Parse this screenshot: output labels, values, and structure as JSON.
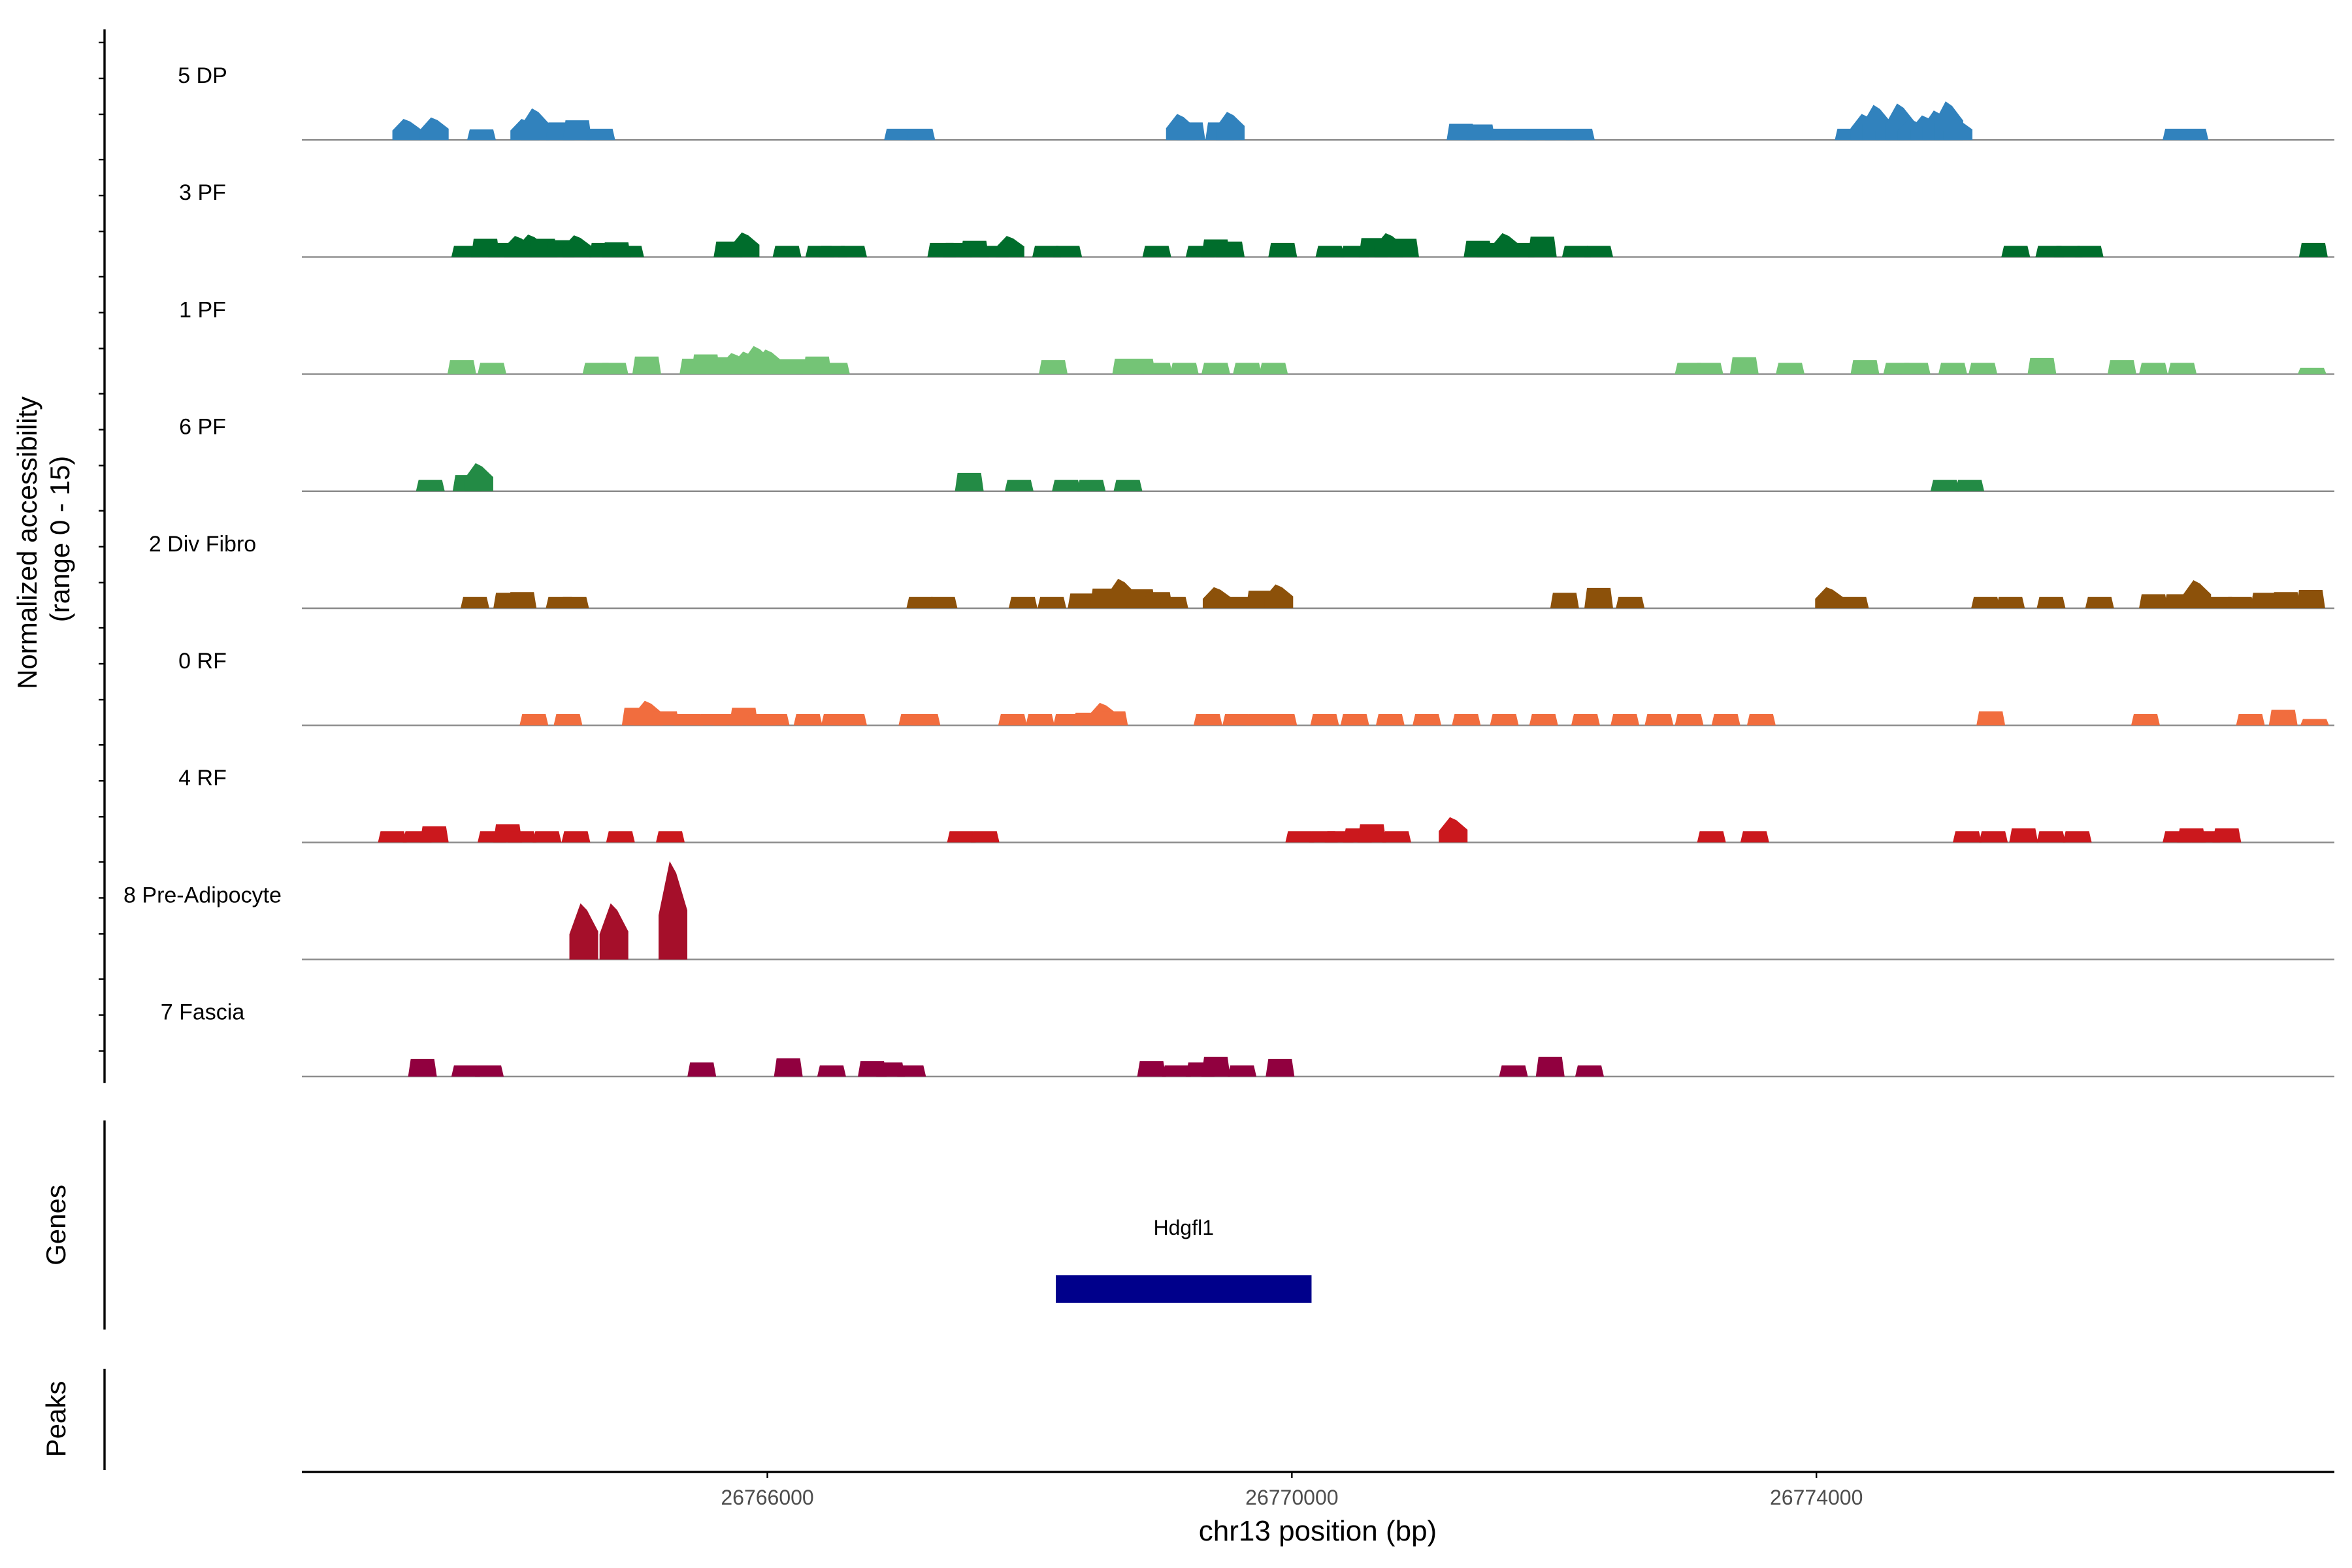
{
  "chart_data": {
    "type": "area",
    "title": "",
    "ylabel": "Normalized accessibility",
    "ylabel_range": "(range 0 - 15)",
    "xlabel": "chr13 position (bp)",
    "xlim": [
      26762450,
      26777950
    ],
    "ylim": [
      0,
      15
    ],
    "x_ticks": [
      26766000,
      26770000,
      26774000
    ],
    "x_tick_labels": [
      "26766000",
      "26770000",
      "26774000"
    ],
    "gene_panel_title": "Genes",
    "peak_panel_title": "Peaks",
    "genes": [
      {
        "name": "Hdgfl1",
        "start": 26768200,
        "end": 26770150,
        "color": "#00008b"
      }
    ],
    "peaks": [],
    "tracks": [
      {
        "name": "5 DP",
        "color": "#3182bd",
        "peaks": [
          [
            26763250,
            3
          ],
          [
            26763460,
            3.2
          ],
          [
            26763820,
            1.5
          ],
          [
            26764150,
            3
          ],
          [
            26764230,
            4.5
          ],
          [
            26764420,
            2.5
          ],
          [
            26764550,
            2.8
          ],
          [
            26764730,
            1.6
          ],
          [
            26767000,
            1.6
          ],
          [
            26767170,
            1.6
          ],
          [
            26769150,
            3.7
          ],
          [
            26769230,
            2.5
          ],
          [
            26769450,
            2.5
          ],
          [
            26769530,
            4
          ],
          [
            26771290,
            2.3
          ],
          [
            26771440,
            2.2
          ],
          [
            26771620,
            1.6
          ],
          [
            26771760,
            1.6
          ],
          [
            26771900,
            1.6
          ],
          [
            26772040,
            1.6
          ],
          [
            26772200,
            1.6
          ],
          [
            26774250,
            1.6
          ],
          [
            26774370,
            3.7
          ],
          [
            26774460,
            5
          ],
          [
            26774560,
            3
          ],
          [
            26774640,
            5.2
          ],
          [
            26774730,
            3
          ],
          [
            26774830,
            3.5
          ],
          [
            26774920,
            4.2
          ],
          [
            26775010,
            5.5
          ],
          [
            26775080,
            3
          ],
          [
            26776750,
            1.6
          ],
          [
            26776880,
            1.6
          ]
        ]
      },
      {
        "name": "3 PF",
        "color": "#006d2c",
        "peaks": [
          [
            26763700,
            1.6
          ],
          [
            26763850,
            2.6
          ],
          [
            26763980,
            2
          ],
          [
            26764100,
            3
          ],
          [
            26764200,
            3.2
          ],
          [
            26764290,
            2.6
          ],
          [
            26764420,
            2.4
          ],
          [
            26764550,
            3.1
          ],
          [
            26764750,
            2
          ],
          [
            26764850,
            2.1
          ],
          [
            26764950,
            1.6
          ],
          [
            26765700,
            2.2
          ],
          [
            26765830,
            3.5
          ],
          [
            26766150,
            1.6
          ],
          [
            26766400,
            1.6
          ],
          [
            26766500,
            1.6
          ],
          [
            26766650,
            1.6
          ],
          [
            26767330,
            2
          ],
          [
            26767450,
            2
          ],
          [
            26767580,
            2.3
          ],
          [
            26767730,
            1.6
          ],
          [
            26767850,
            3
          ],
          [
            26768130,
            1.6
          ],
          [
            26768290,
            1.6
          ],
          [
            26768970,
            1.6
          ],
          [
            26769300,
            1.6
          ],
          [
            26769420,
            2.5
          ],
          [
            26769530,
            2.2
          ],
          [
            26769930,
            2
          ],
          [
            26770290,
            1.6
          ],
          [
            26770480,
            1.6
          ],
          [
            26770620,
            2.7
          ],
          [
            26770740,
            3.4
          ],
          [
            26770860,
            2.6
          ],
          [
            26771420,
            2.3
          ],
          [
            26771520,
            2
          ],
          [
            26771630,
            3.4
          ],
          [
            26771740,
            2
          ],
          [
            26771910,
            2.9
          ],
          [
            26772170,
            1.6
          ],
          [
            26772340,
            1.6
          ],
          [
            26775520,
            1.6
          ],
          [
            26775780,
            1.6
          ],
          [
            26775920,
            1.6
          ],
          [
            26776080,
            1.6
          ],
          [
            26777790,
            2
          ]
        ]
      },
      {
        "name": "1 PF",
        "color": "#74c476",
        "peaks": [
          [
            26763670,
            2
          ],
          [
            26763900,
            1.6
          ],
          [
            26764700,
            1.6
          ],
          [
            26764830,
            1.6
          ],
          [
            26765080,
            2.5
          ],
          [
            26765440,
            2.2
          ],
          [
            26765530,
            2.8
          ],
          [
            26765640,
            2.4
          ],
          [
            26765750,
            3
          ],
          [
            26765840,
            3.2
          ],
          [
            26765920,
            4
          ],
          [
            26766010,
            3.5
          ],
          [
            26766110,
            2.1
          ],
          [
            26766230,
            2.1
          ],
          [
            26766380,
            2.5
          ],
          [
            26766520,
            1.6
          ],
          [
            26768180,
            2
          ],
          [
            26768740,
            2.2
          ],
          [
            26768850,
            2.2
          ],
          [
            26768980,
            1.6
          ],
          [
            26769180,
            1.6
          ],
          [
            26769420,
            1.6
          ],
          [
            26769660,
            1.6
          ],
          [
            26769860,
            1.6
          ],
          [
            26773030,
            1.6
          ],
          [
            26773180,
            1.6
          ],
          [
            26773450,
            2.4
          ],
          [
            26773800,
            1.6
          ],
          [
            26774370,
            2
          ],
          [
            26774620,
            1.6
          ],
          [
            26774760,
            1.6
          ],
          [
            26775040,
            1.6
          ],
          [
            26775270,
            1.6
          ],
          [
            26775720,
            2.3
          ],
          [
            26776330,
            2
          ],
          [
            26776570,
            1.6
          ],
          [
            26776790,
            1.6
          ],
          [
            26777780,
            0.9
          ]
        ]
      },
      {
        "name": "6 PF",
        "color": "#238b45",
        "peaks": [
          [
            26763430,
            1.6
          ],
          [
            26763710,
            2.3
          ],
          [
            26763800,
            4
          ],
          [
            26767540,
            2.6
          ],
          [
            26767920,
            1.6
          ],
          [
            26768280,
            1.6
          ],
          [
            26768470,
            1.6
          ],
          [
            26768750,
            1.6
          ],
          [
            26774980,
            1.6
          ],
          [
            26775170,
            1.6
          ]
        ]
      },
      {
        "name": "2 Div Fibro",
        "color": "#8c510a",
        "peaks": [
          [
            26763770,
            1.6
          ],
          [
            26764020,
            2.2
          ],
          [
            26764130,
            2.3
          ],
          [
            26764420,
            1.6
          ],
          [
            26764530,
            1.6
          ],
          [
            26767170,
            1.6
          ],
          [
            26767340,
            1.6
          ],
          [
            26767950,
            1.6
          ],
          [
            26768170,
            1.6
          ],
          [
            26768400,
            2.1
          ],
          [
            26768570,
            2.8
          ],
          [
            26768700,
            4.2
          ],
          [
            26768850,
            2.7
          ],
          [
            26768980,
            2.3
          ],
          [
            26769100,
            1.6
          ],
          [
            26769430,
            3
          ],
          [
            26769600,
            1.6
          ],
          [
            26769760,
            2.5
          ],
          [
            26769900,
            3.4
          ],
          [
            26772080,
            2.2
          ],
          [
            26772340,
            2.9
          ],
          [
            26772580,
            1.6
          ],
          [
            26774100,
            3
          ],
          [
            26774290,
            1.6
          ],
          [
            26775290,
            1.6
          ],
          [
            26775480,
            1.6
          ],
          [
            26775790,
            1.6
          ],
          [
            26776160,
            1.6
          ],
          [
            26776570,
            2
          ],
          [
            26776760,
            2
          ],
          [
            26776900,
            4
          ],
          [
            26777080,
            1.6
          ],
          [
            26777230,
            1.6
          ],
          [
            26777420,
            2.2
          ],
          [
            26777580,
            2.3
          ],
          [
            26777770,
            2.6
          ]
        ]
      },
      {
        "name": "0 RF",
        "color": "#f16d3e",
        "peaks": [
          [
            26764220,
            1.6
          ],
          [
            26764480,
            1.6
          ],
          [
            26765000,
            2.5
          ],
          [
            26765090,
            3.5
          ],
          [
            26765220,
            2
          ],
          [
            26765400,
            1.6
          ],
          [
            26765580,
            1.6
          ],
          [
            26765700,
            1.6
          ],
          [
            26765820,
            2.5
          ],
          [
            26765950,
            1.6
          ],
          [
            26766060,
            1.6
          ],
          [
            26766310,
            1.6
          ],
          [
            26766520,
            1.6
          ],
          [
            26766650,
            1.6
          ],
          [
            26767110,
            1.6
          ],
          [
            26767210,
            1.6
          ],
          [
            26767870,
            1.6
          ],
          [
            26768080,
            1.6
          ],
          [
            26768290,
            1.6
          ],
          [
            26768440,
            1.8
          ],
          [
            26768560,
            3.2
          ],
          [
            26768640,
            2
          ],
          [
            26769360,
            1.6
          ],
          [
            26769580,
            1.6
          ],
          [
            26769760,
            1.6
          ],
          [
            26769930,
            1.6
          ],
          [
            26770250,
            1.6
          ],
          [
            26770480,
            1.6
          ],
          [
            26770750,
            1.6
          ],
          [
            26771030,
            1.6
          ],
          [
            26771330,
            1.6
          ],
          [
            26771620,
            1.6
          ],
          [
            26771920,
            1.6
          ],
          [
            26772240,
            1.6
          ],
          [
            26772540,
            1.6
          ],
          [
            26772800,
            1.6
          ],
          [
            26773030,
            1.6
          ],
          [
            26773310,
            1.6
          ],
          [
            26773580,
            1.6
          ],
          [
            26775330,
            2
          ],
          [
            26776510,
            1.6
          ],
          [
            26777310,
            1.6
          ],
          [
            26777560,
            2.2
          ],
          [
            26777800,
            0.9
          ]
        ]
      },
      {
        "name": "4 RF",
        "color": "#cb181d",
        "peaks": [
          [
            26763140,
            1.6
          ],
          [
            26763330,
            1.6
          ],
          [
            26763460,
            2.3
          ],
          [
            26763900,
            1.6
          ],
          [
            26764020,
            2.6
          ],
          [
            26764130,
            1.6
          ],
          [
            26764320,
            1.6
          ],
          [
            26764540,
            1.6
          ],
          [
            26764880,
            1.6
          ],
          [
            26765260,
            1.6
          ],
          [
            26767480,
            1.6
          ],
          [
            26767660,
            1.6
          ],
          [
            26770060,
            1.6
          ],
          [
            26770240,
            1.6
          ],
          [
            26770360,
            1.6
          ],
          [
            26770500,
            2
          ],
          [
            26770610,
            2.6
          ],
          [
            26770800,
            1.6
          ],
          [
            26771230,
            3.6
          ],
          [
            26773200,
            1.6
          ],
          [
            26773530,
            1.6
          ],
          [
            26775150,
            1.6
          ],
          [
            26775350,
            1.6
          ],
          [
            26775580,
            2
          ],
          [
            26775790,
            1.6
          ],
          [
            26775990,
            1.6
          ],
          [
            26776750,
            1.6
          ],
          [
            26776860,
            2
          ],
          [
            26776970,
            1.6
          ],
          [
            26777130,
            2
          ]
        ]
      },
      {
        "name": "8 Pre-Adipocyte",
        "color": "#a50f2a",
        "peaks": [
          [
            26764600,
            8
          ],
          [
            26764830,
            8
          ],
          [
            26765280,
            14
          ]
        ]
      },
      {
        "name": "7 Fascia",
        "color": "#91003f",
        "peaks": [
          [
            26763370,
            2.5
          ],
          [
            26763700,
            1.6
          ],
          [
            26763880,
            1.6
          ],
          [
            26765500,
            2
          ],
          [
            26766160,
            2.6
          ],
          [
            26766490,
            1.6
          ],
          [
            26766800,
            2.2
          ],
          [
            26766940,
            2
          ],
          [
            26767100,
            1.6
          ],
          [
            26768930,
            2.2
          ],
          [
            26769120,
            1.6
          ],
          [
            26769300,
            2
          ],
          [
            26769420,
            2.8
          ],
          [
            26769620,
            1.6
          ],
          [
            26769910,
            2.5
          ],
          [
            26771690,
            1.6
          ],
          [
            26771970,
            2.8
          ],
          [
            26772270,
            1.6
          ]
        ]
      }
    ]
  }
}
